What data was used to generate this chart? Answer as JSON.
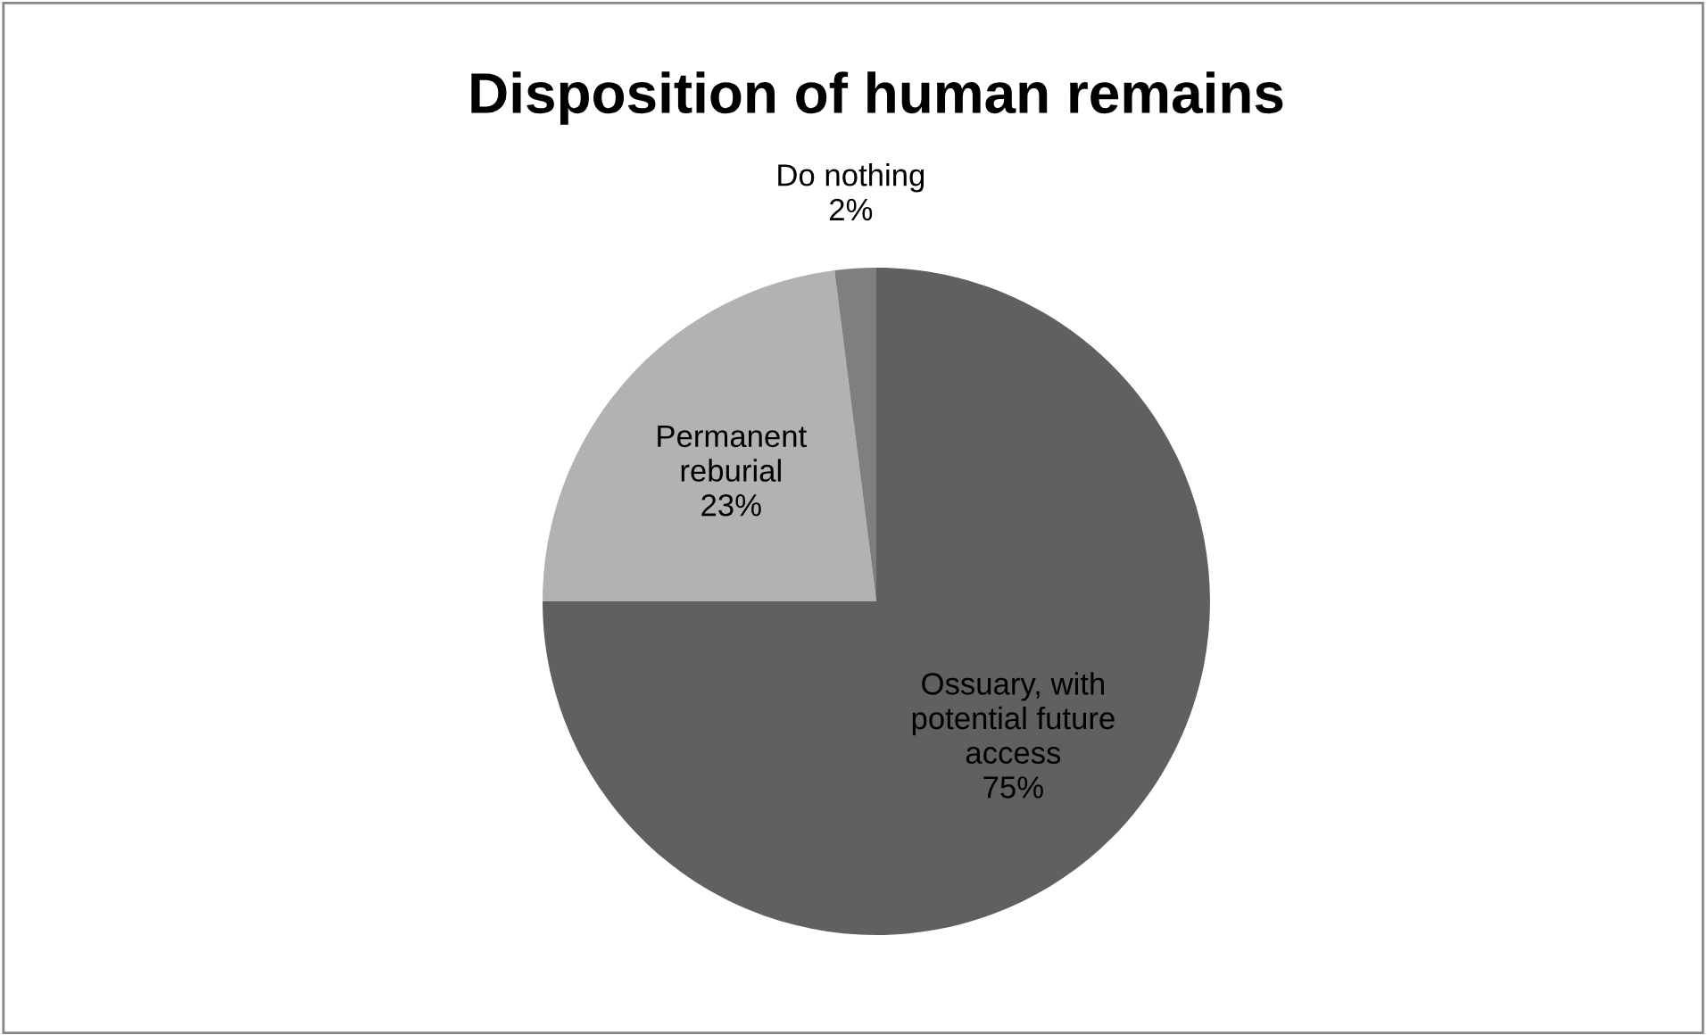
{
  "chart_data": {
    "type": "pie",
    "title": "Disposition of human remains",
    "categories": [
      "Ossuary, with\npotential future\naccess",
      "Permanent\nreburial",
      "Do nothing"
    ],
    "values": [
      75,
      23,
      2
    ],
    "value_labels": [
      "75%",
      "23%",
      "2%"
    ],
    "colors": [
      "#606060",
      "#b2b2b2",
      "#7f7f7f"
    ],
    "legend": false
  }
}
